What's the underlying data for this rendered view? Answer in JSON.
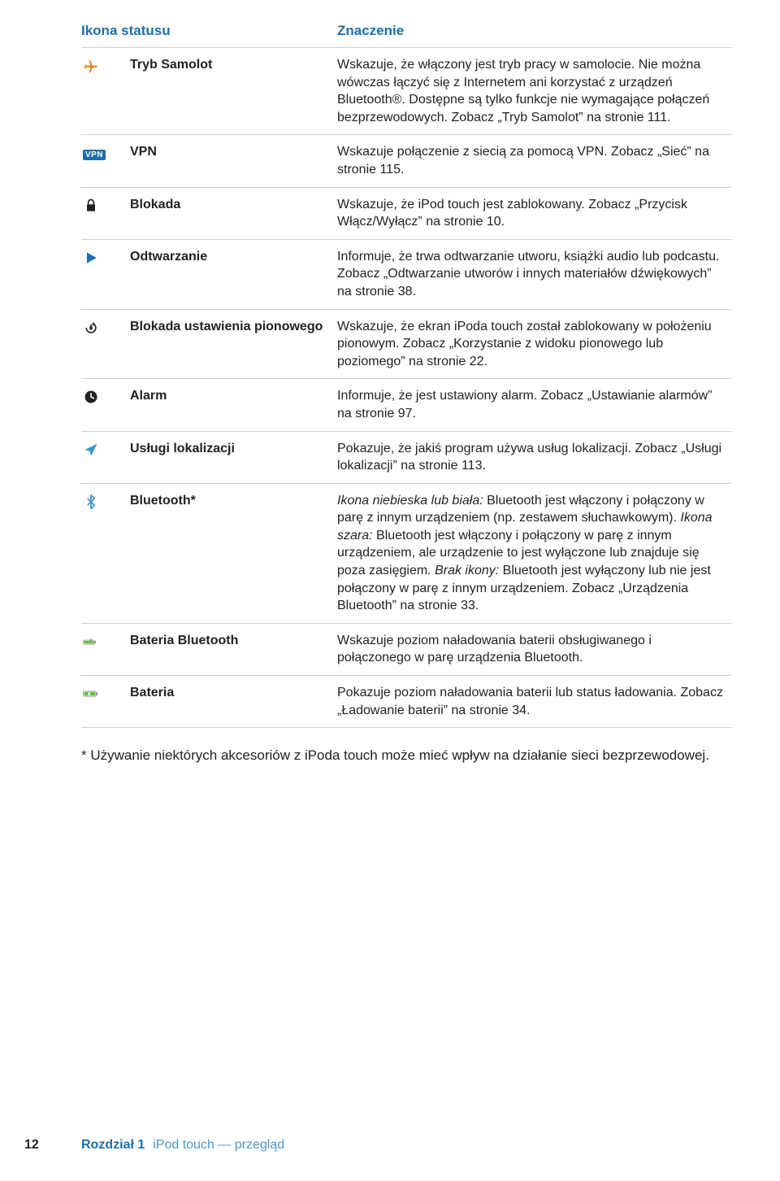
{
  "colors": {
    "heading": "#1a6fb0",
    "text": "#222222",
    "border": "#cfcfcf",
    "iconAccent": "#3a92cf",
    "iconOrange": "#e18b2b",
    "iconGreen": "#5fbf3a",
    "background": "#ffffff"
  },
  "header": {
    "col1": "Ikona statusu",
    "col2": "Znaczenie"
  },
  "rows": [
    {
      "label": "Tryb Samolot",
      "meaning": "Wskazuje, że włączony jest tryb pracy w samolocie. Nie można wówczas łączyć się z Internetem ani korzystać z urządzeń Bluetooth®. Dostępne są tylko funkcje nie wymagające połączeń bezprzewodowych. Zobacz „Tryb Samolot” na stronie 111."
    },
    {
      "label": "VPN",
      "vpnText": "VPN",
      "meaning": "Wskazuje połączenie z siecią za pomocą VPN. Zobacz „Sieć” na stronie 115."
    },
    {
      "label": "Blokada",
      "meaning": "Wskazuje, że iPod touch jest zablokowany. Zobacz „Przycisk Włącz/Wyłącz” na stronie 10."
    },
    {
      "label": "Odtwarzanie",
      "meaning": "Informuje, że trwa odtwarzanie utworu, książki audio lub podcastu. Zobacz „Odtwarzanie utworów i innych materiałów dźwiękowych” na stronie 38."
    },
    {
      "label": "Blokada ustawienia pionowego",
      "meaning": "Wskazuje, że ekran iPoda touch został zablokowany w położeniu pionowym. Zobacz „Korzystanie z widoku pionowego lub poziomego” na stronie 22."
    },
    {
      "label": "Alarm",
      "meaning": "Informuje, że jest ustawiony alarm. Zobacz „Ustawianie alarmów” na stronie 97."
    },
    {
      "label": "Usługi lokalizacji",
      "meaning": "Pokazuje, że jakiś program używa usług lokalizacji. Zobacz „Usługi lokalizacji” na stronie 113."
    },
    {
      "label": "Bluetooth*",
      "meaning_segments": [
        {
          "italic": true,
          "text": "Ikona niebieska lub biała: "
        },
        {
          "italic": false,
          "text": "Bluetooth jest włączony i połączony w parę z innym urządzeniem (np. zestawem słuchawkowym). "
        },
        {
          "italic": true,
          "text": "Ikona szara: "
        },
        {
          "italic": false,
          "text": "Bluetooth jest włączony i połączony w parę z innym urządzeniem, ale urządzenie to jest wyłączone lub znajduje się poza zasięgiem. "
        },
        {
          "italic": true,
          "text": "Brak ikony: "
        },
        {
          "italic": false,
          "text": "Bluetooth jest wyłączony lub nie jest połączony w parę z innym urządzeniem. Zobacz „Urządzenia Bluetooth” na stronie 33."
        }
      ]
    },
    {
      "label": "Bateria Bluetooth",
      "meaning": "Wskazuje poziom naładowania baterii obsługiwanego i połączonego w parę urządzenia Bluetooth."
    },
    {
      "label": "Bateria",
      "meaning": "Pokazuje poziom naładowania baterii lub status ładowania. Zobacz „Ładowanie baterii” na stronie 34."
    }
  ],
  "footnote": "*  Używanie niektórych akcesoriów z iPoda touch może mieć wpływ na działanie sieci bezprzewodowej.",
  "footer": {
    "page": "12",
    "chapter": "Rozdział 1",
    "title": "iPod touch — przegląd"
  }
}
